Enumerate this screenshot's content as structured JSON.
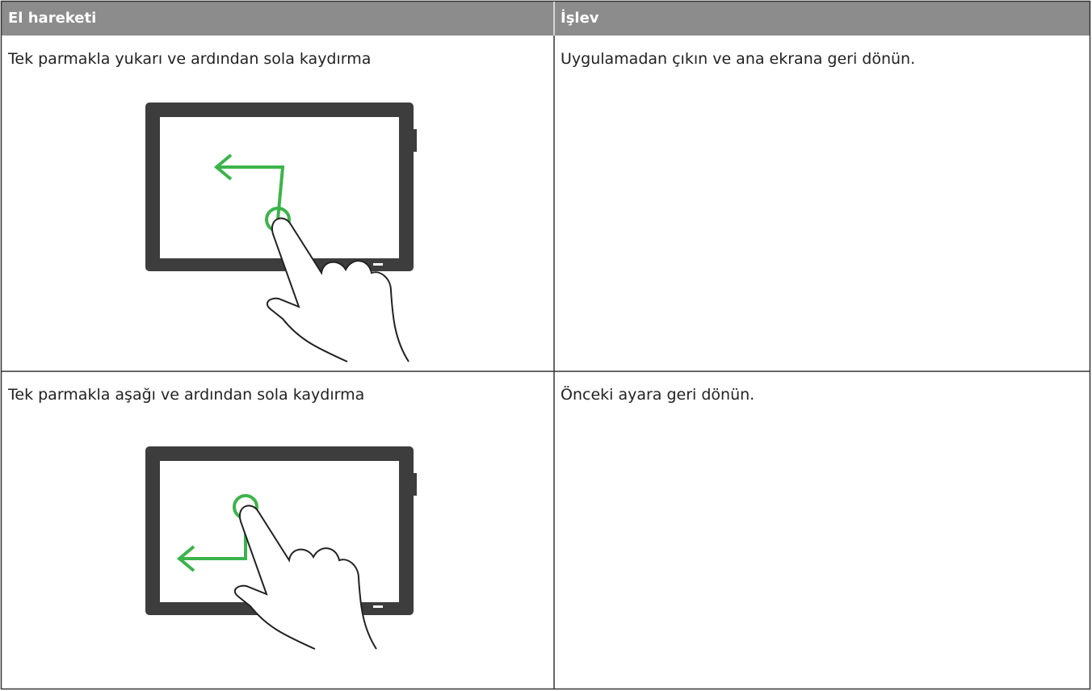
{
  "table": {
    "header": [
      "El hareketi",
      "İşlev"
    ],
    "rows": [
      [
        "Tek parmakla yukarı ve ardından sola kaydırma",
        "Uygulamadan çıkın ve ana ekrana geri dönün."
      ],
      [
        "Tek parmakla aşağı ve ardından sola kaydırma",
        "Önceki ayara geri dönün."
      ]
    ]
  }
}
